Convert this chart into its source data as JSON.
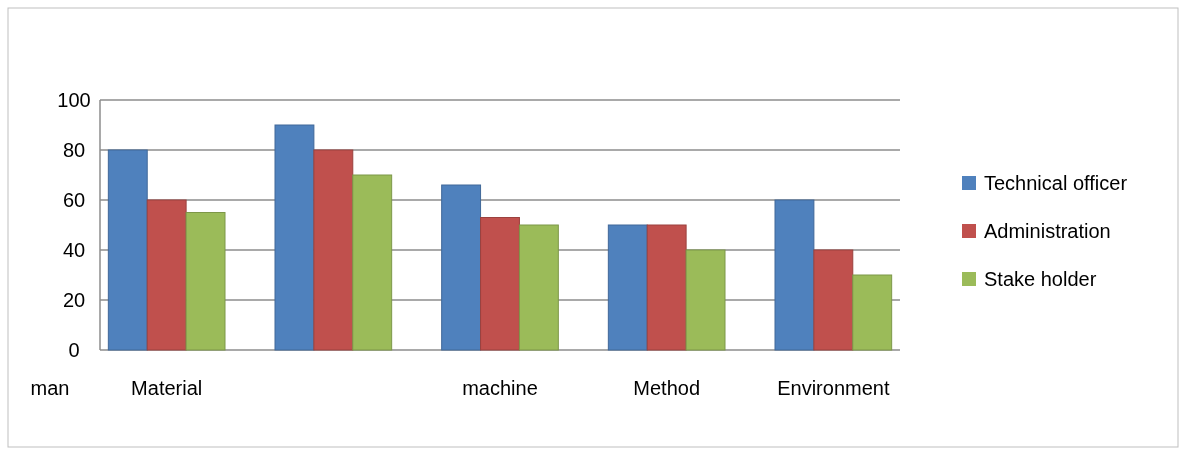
{
  "chart_data": {
    "type": "bar",
    "categories": [
      "Material",
      null,
      "machine",
      "Method",
      "Environment"
    ],
    "series": [
      {
        "name": "Technical officer",
        "color": "#4f81bd",
        "values": [
          80,
          90,
          66,
          50,
          60
        ]
      },
      {
        "name": "Administration",
        "color": "#c0504d",
        "values": [
          60,
          80,
          53,
          50,
          40
        ]
      },
      {
        "name": "Stake holder",
        "color": "#9bbb59",
        "values": [
          55,
          70,
          50,
          40,
          30
        ]
      }
    ],
    "ylim": [
      0,
      100
    ],
    "yticks": [
      0,
      20,
      40,
      60,
      80,
      100
    ],
    "grid": "y",
    "legend": "right",
    "annotations": [
      "man"
    ]
  }
}
